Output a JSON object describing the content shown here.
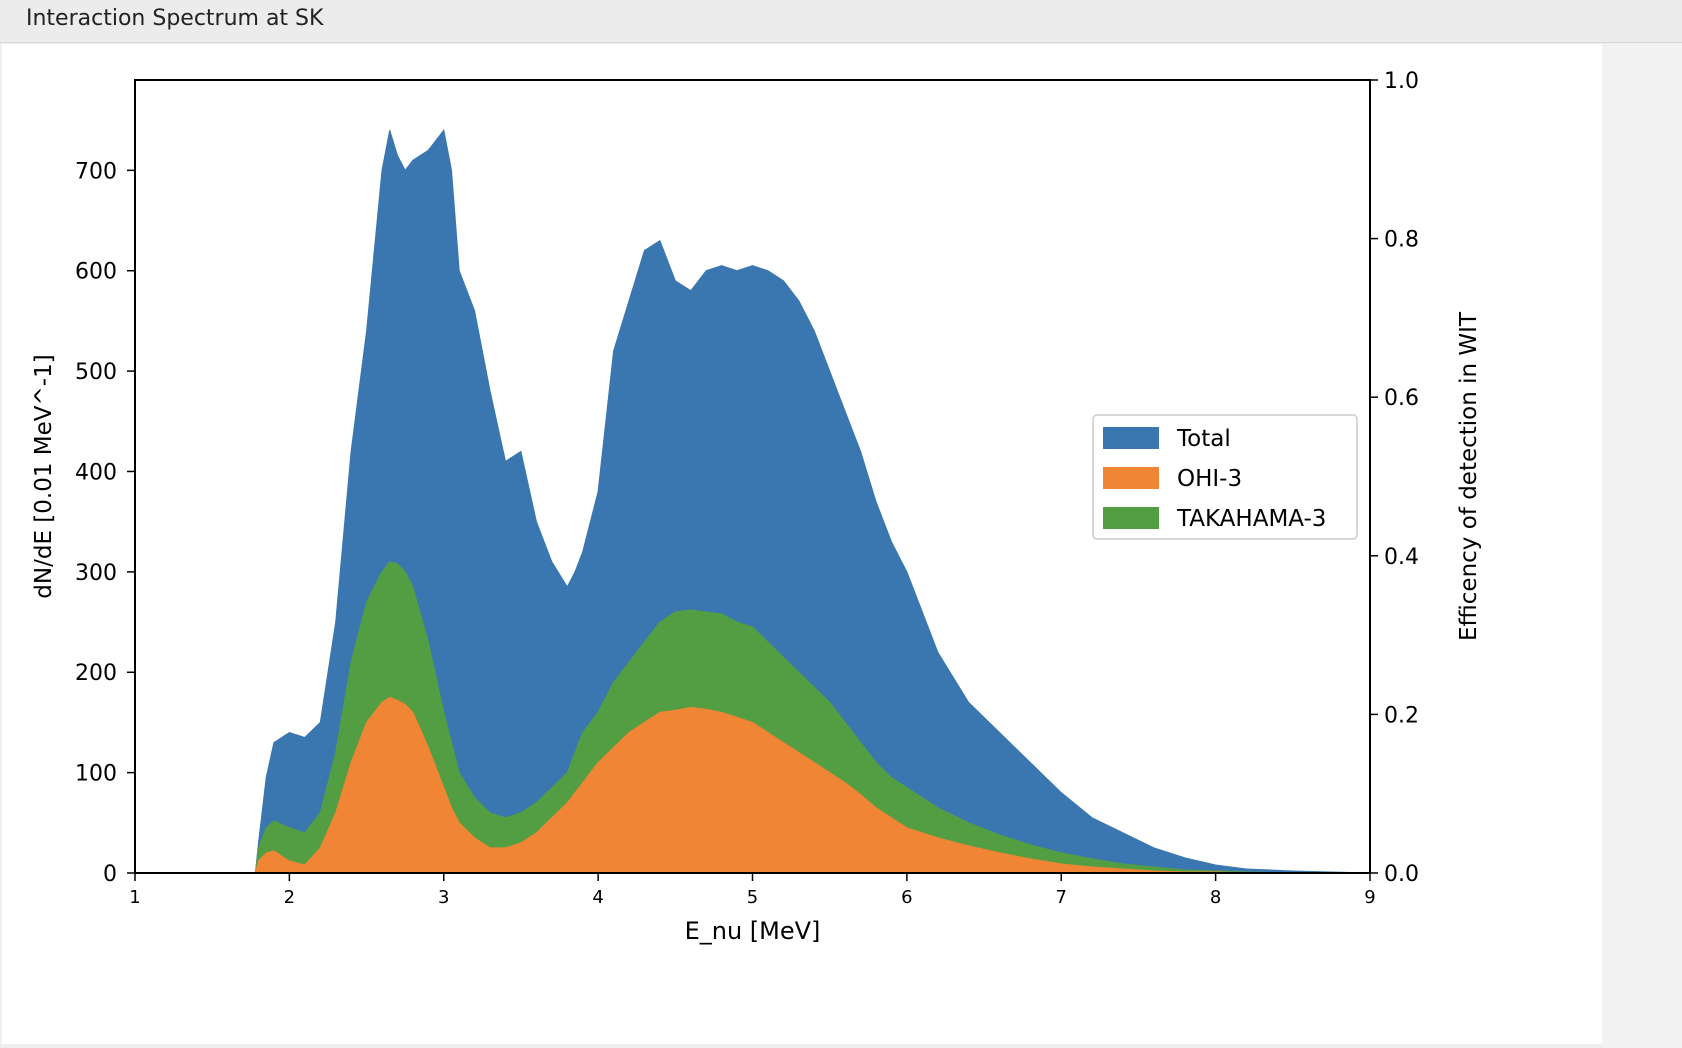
{
  "window": {
    "title": "Interaction Spectrum at SK"
  },
  "colors": {
    "total": "#3a76b0",
    "ohi": "#ef8535",
    "takahama": "#539e42"
  },
  "chart_data": {
    "type": "area",
    "title": "",
    "xlabel": "E_nu [MeV]",
    "ylabel": "dN/dE [0.01 MeV^-1]",
    "y2label": "Efficency of detection in WIT",
    "xlim": [
      1,
      9
    ],
    "ylim": [
      0,
      790
    ],
    "y2lim": [
      0,
      1.0
    ],
    "xticks": [
      1,
      2,
      3,
      4,
      5,
      6,
      7,
      8,
      9
    ],
    "yticks": [
      0,
      100,
      200,
      300,
      400,
      500,
      600,
      700
    ],
    "y2ticks": [
      "0.0",
      "0.2",
      "0.4",
      "0.6",
      "0.8",
      "1.0"
    ],
    "legend": {
      "placement": "center-right",
      "entries": [
        "Total",
        "OHI-3",
        "TAKAHAMA-3"
      ]
    },
    "x": [
      1.0,
      1.78,
      1.8,
      1.85,
      1.9,
      2.0,
      2.1,
      2.2,
      2.3,
      2.4,
      2.5,
      2.6,
      2.65,
      2.7,
      2.75,
      2.8,
      2.9,
      3.0,
      3.05,
      3.1,
      3.2,
      3.3,
      3.4,
      3.5,
      3.6,
      3.7,
      3.8,
      3.85,
      3.9,
      4.0,
      4.1,
      4.2,
      4.3,
      4.4,
      4.5,
      4.6,
      4.7,
      4.8,
      4.9,
      5.0,
      5.1,
      5.2,
      5.3,
      5.4,
      5.5,
      5.6,
      5.7,
      5.8,
      5.9,
      6.0,
      6.2,
      6.4,
      6.6,
      6.8,
      7.0,
      7.2,
      7.4,
      7.6,
      7.8,
      8.0,
      8.2,
      8.5,
      9.0
    ],
    "series": [
      {
        "name": "Total",
        "values": [
          0,
          0,
          30,
          95,
          130,
          140,
          135,
          150,
          250,
          420,
          540,
          700,
          740,
          715,
          700,
          710,
          720,
          740,
          700,
          600,
          560,
          480,
          410,
          420,
          350,
          310,
          285,
          300,
          320,
          380,
          520,
          570,
          620,
          630,
          590,
          580,
          600,
          605,
          600,
          605,
          600,
          590,
          570,
          540,
          500,
          460,
          420,
          370,
          330,
          300,
          220,
          170,
          140,
          110,
          80,
          55,
          40,
          25,
          15,
          8,
          4,
          2,
          0
        ]
      },
      {
        "name": "TAKAHAMA-3",
        "values": [
          0,
          0,
          25,
          45,
          52,
          45,
          40,
          60,
          120,
          210,
          270,
          300,
          310,
          308,
          300,
          285,
          230,
          160,
          130,
          100,
          75,
          60,
          55,
          60,
          70,
          85,
          100,
          120,
          140,
          160,
          190,
          210,
          230,
          250,
          260,
          262,
          260,
          258,
          250,
          245,
          230,
          215,
          200,
          185,
          170,
          150,
          130,
          110,
          95,
          85,
          65,
          50,
          38,
          28,
          20,
          14,
          9,
          6,
          3,
          2,
          1,
          0,
          0
        ]
      },
      {
        "name": "OHI-3",
        "values": [
          0,
          0,
          12,
          20,
          22,
          12,
          8,
          25,
          60,
          110,
          150,
          170,
          175,
          172,
          168,
          160,
          125,
          85,
          65,
          50,
          35,
          25,
          25,
          30,
          40,
          55,
          70,
          80,
          90,
          110,
          125,
          140,
          150,
          160,
          162,
          165,
          163,
          160,
          155,
          150,
          140,
          130,
          120,
          110,
          100,
          90,
          78,
          65,
          55,
          45,
          35,
          27,
          20,
          14,
          9,
          6,
          4,
          2,
          1,
          1,
          0,
          0,
          0
        ]
      }
    ]
  }
}
